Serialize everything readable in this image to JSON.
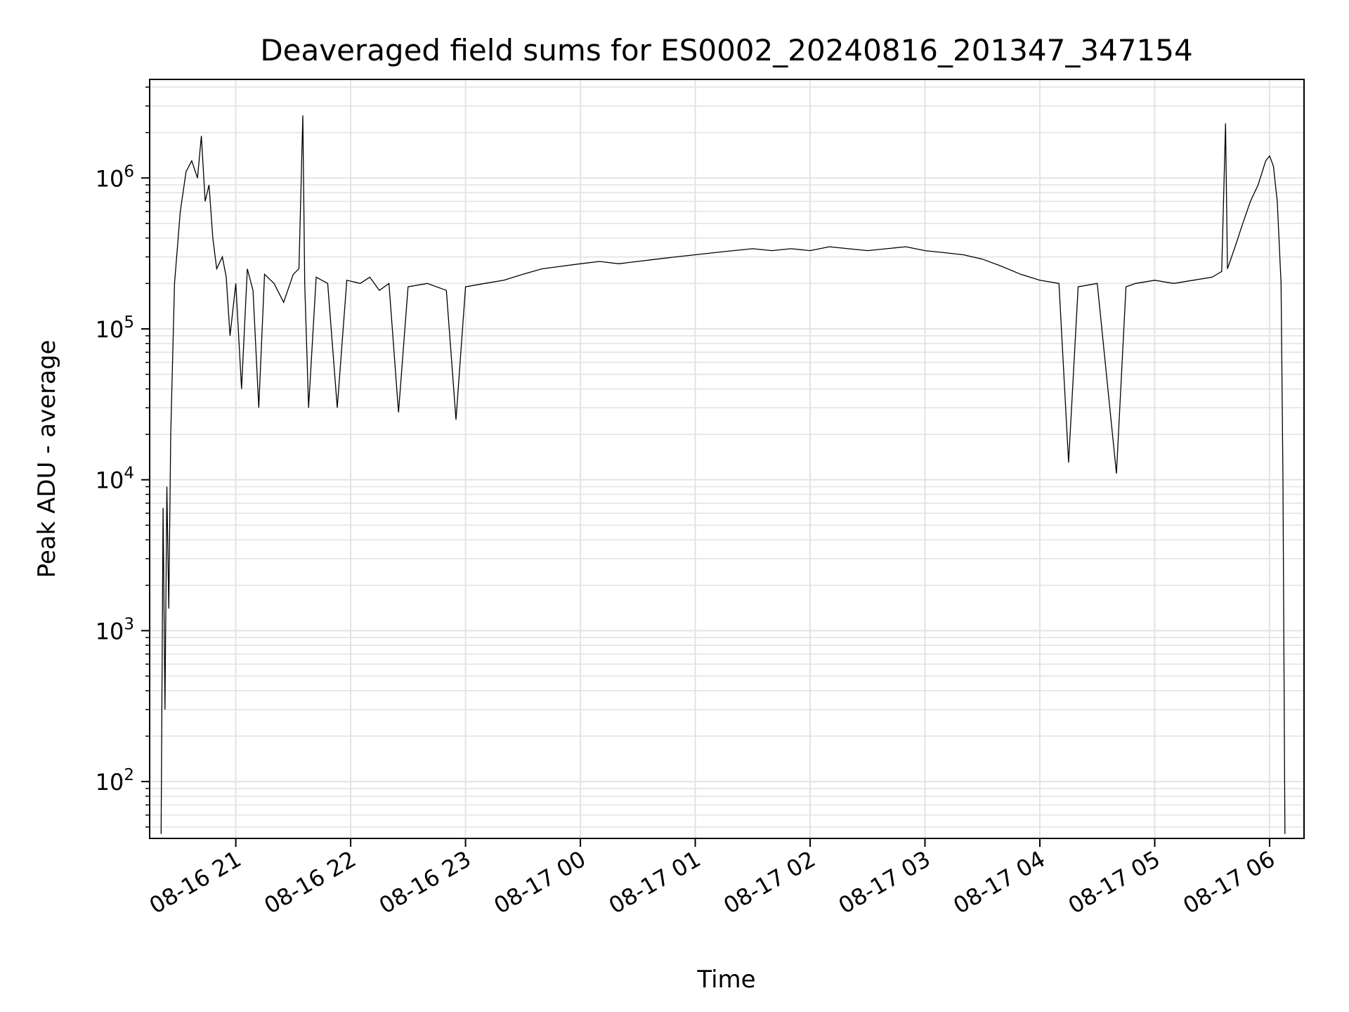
{
  "chart_data": {
    "type": "line",
    "title": "Deaveraged field sums for ES0002_20240816_201347_347154",
    "xlabel": "Time",
    "ylabel": "Peak ADU - average",
    "yscale": "log",
    "ylim": [
      42,
      4500000
    ],
    "xlim": [
      "2024-08-16 20:15",
      "2024-08-17 06:18"
    ],
    "grid": "on (major and minor)",
    "line_color": "#000000",
    "x_ticks": [
      {
        "x": "2024-08-16 21:00",
        "label": "08-16 21"
      },
      {
        "x": "2024-08-16 22:00",
        "label": "08-16 22"
      },
      {
        "x": "2024-08-16 23:00",
        "label": "08-16 23"
      },
      {
        "x": "2024-08-17 00:00",
        "label": "08-17 00"
      },
      {
        "x": "2024-08-17 01:00",
        "label": "08-17 01"
      },
      {
        "x": "2024-08-17 02:00",
        "label": "08-17 02"
      },
      {
        "x": "2024-08-17 03:00",
        "label": "08-17 03"
      },
      {
        "x": "2024-08-17 04:00",
        "label": "08-17 04"
      },
      {
        "x": "2024-08-17 05:00",
        "label": "08-17 05"
      },
      {
        "x": "2024-08-17 06:00",
        "label": "08-17 06"
      }
    ],
    "y_ticks": [
      {
        "value": 100,
        "base": "10",
        "exp": "2"
      },
      {
        "value": 1000,
        "base": "10",
        "exp": "3"
      },
      {
        "value": 10000,
        "base": "10",
        "exp": "4"
      },
      {
        "value": 100000,
        "base": "10",
        "exp": "5"
      },
      {
        "value": 1000000,
        "base": "10",
        "exp": "6"
      }
    ],
    "series": [
      {
        "points": [
          [
            "2024-08-16 20:21",
            45
          ],
          [
            "2024-08-16 20:22",
            6500
          ],
          [
            "2024-08-16 20:23",
            300
          ],
          [
            "2024-08-16 20:24",
            9000
          ],
          [
            "2024-08-16 20:25",
            1400
          ],
          [
            "2024-08-16 20:26",
            20000
          ],
          [
            "2024-08-16 20:28",
            200000
          ],
          [
            "2024-08-16 20:31",
            600000
          ],
          [
            "2024-08-16 20:34",
            1100000
          ],
          [
            "2024-08-16 20:37",
            1300000
          ],
          [
            "2024-08-16 20:40",
            1000000
          ],
          [
            "2024-08-16 20:42",
            1900000
          ],
          [
            "2024-08-16 20:44",
            700000
          ],
          [
            "2024-08-16 20:46",
            900000
          ],
          [
            "2024-08-16 20:48",
            400000
          ],
          [
            "2024-08-16 20:50",
            250000
          ],
          [
            "2024-08-16 20:53",
            300000
          ],
          [
            "2024-08-16 20:55",
            220000
          ],
          [
            "2024-08-16 20:57",
            90000
          ],
          [
            "2024-08-16 21:00",
            200000
          ],
          [
            "2024-08-16 21:03",
            40000
          ],
          [
            "2024-08-16 21:06",
            250000
          ],
          [
            "2024-08-16 21:09",
            180000
          ],
          [
            "2024-08-16 21:12",
            30000
          ],
          [
            "2024-08-16 21:15",
            230000
          ],
          [
            "2024-08-16 21:20",
            200000
          ],
          [
            "2024-08-16 21:25",
            150000
          ],
          [
            "2024-08-16 21:30",
            230000
          ],
          [
            "2024-08-16 21:33",
            250000
          ],
          [
            "2024-08-16 21:35",
            2600000
          ],
          [
            "2024-08-16 21:36",
            200000
          ],
          [
            "2024-08-16 21:38",
            30000
          ],
          [
            "2024-08-16 21:42",
            220000
          ],
          [
            "2024-08-16 21:48",
            200000
          ],
          [
            "2024-08-16 21:53",
            30000
          ],
          [
            "2024-08-16 21:58",
            210000
          ],
          [
            "2024-08-16 22:05",
            200000
          ],
          [
            "2024-08-16 22:10",
            220000
          ],
          [
            "2024-08-16 22:15",
            180000
          ],
          [
            "2024-08-16 22:20",
            200000
          ],
          [
            "2024-08-16 22:25",
            28000
          ],
          [
            "2024-08-16 22:30",
            190000
          ],
          [
            "2024-08-16 22:40",
            200000
          ],
          [
            "2024-08-16 22:50",
            180000
          ],
          [
            "2024-08-16 22:55",
            25000
          ],
          [
            "2024-08-16 23:00",
            190000
          ],
          [
            "2024-08-16 23:10",
            200000
          ],
          [
            "2024-08-16 23:20",
            210000
          ],
          [
            "2024-08-16 23:30",
            230000
          ],
          [
            "2024-08-16 23:40",
            250000
          ],
          [
            "2024-08-16 23:50",
            260000
          ],
          [
            "2024-08-17 00:00",
            270000
          ],
          [
            "2024-08-17 00:10",
            280000
          ],
          [
            "2024-08-17 00:20",
            270000
          ],
          [
            "2024-08-17 00:30",
            280000
          ],
          [
            "2024-08-17 00:40",
            290000
          ],
          [
            "2024-08-17 00:50",
            300000
          ],
          [
            "2024-08-17 01:00",
            310000
          ],
          [
            "2024-08-17 01:10",
            320000
          ],
          [
            "2024-08-17 01:20",
            330000
          ],
          [
            "2024-08-17 01:30",
            340000
          ],
          [
            "2024-08-17 01:40",
            330000
          ],
          [
            "2024-08-17 01:50",
            340000
          ],
          [
            "2024-08-17 02:00",
            330000
          ],
          [
            "2024-08-17 02:10",
            350000
          ],
          [
            "2024-08-17 02:20",
            340000
          ],
          [
            "2024-08-17 02:30",
            330000
          ],
          [
            "2024-08-17 02:40",
            340000
          ],
          [
            "2024-08-17 02:50",
            350000
          ],
          [
            "2024-08-17 03:00",
            330000
          ],
          [
            "2024-08-17 03:10",
            320000
          ],
          [
            "2024-08-17 03:20",
            310000
          ],
          [
            "2024-08-17 03:30",
            290000
          ],
          [
            "2024-08-17 03:40",
            260000
          ],
          [
            "2024-08-17 03:50",
            230000
          ],
          [
            "2024-08-17 04:00",
            210000
          ],
          [
            "2024-08-17 04:10",
            200000
          ],
          [
            "2024-08-17 04:15",
            13000
          ],
          [
            "2024-08-17 04:20",
            190000
          ],
          [
            "2024-08-17 04:30",
            200000
          ],
          [
            "2024-08-17 04:40",
            11000
          ],
          [
            "2024-08-17 04:45",
            190000
          ],
          [
            "2024-08-17 04:50",
            200000
          ],
          [
            "2024-08-17 05:00",
            210000
          ],
          [
            "2024-08-17 05:10",
            200000
          ],
          [
            "2024-08-17 05:20",
            210000
          ],
          [
            "2024-08-17 05:30",
            220000
          ],
          [
            "2024-08-17 05:35",
            240000
          ],
          [
            "2024-08-17 05:37",
            2300000
          ],
          [
            "2024-08-17 05:38",
            250000
          ],
          [
            "2024-08-17 05:42",
            350000
          ],
          [
            "2024-08-17 05:46",
            500000
          ],
          [
            "2024-08-17 05:50",
            700000
          ],
          [
            "2024-08-17 05:54",
            900000
          ],
          [
            "2024-08-17 05:58",
            1300000
          ],
          [
            "2024-08-17 06:00",
            1400000
          ],
          [
            "2024-08-17 06:02",
            1200000
          ],
          [
            "2024-08-17 06:04",
            700000
          ],
          [
            "2024-08-17 06:06",
            200000
          ],
          [
            "2024-08-17 06:07",
            10000
          ],
          [
            "2024-08-17 06:08",
            45
          ]
        ]
      }
    ]
  }
}
